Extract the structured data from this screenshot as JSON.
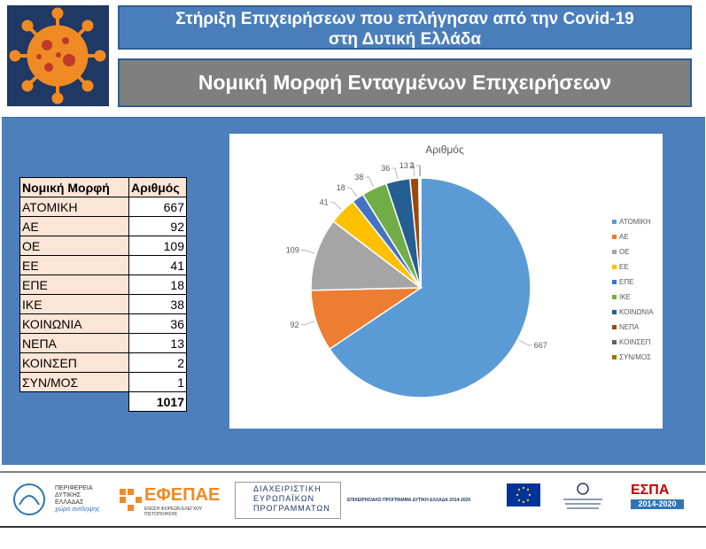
{
  "header": {
    "title_line1": "Στήριξη Επιχειρήσεων που επλήγησαν από την Covid-19",
    "title_line2": "στη Δυτική Ελλάδα",
    "subtitle": "Νομική Μορφή Ενταγμένων Επιχειρήσεων",
    "logo_icon": "virus-icon"
  },
  "table": {
    "col1": "Νομική Μορφή",
    "col2": "Αριθμός",
    "rows": [
      {
        "name": "ΑΤΟΜΙΚΗ",
        "value": "667"
      },
      {
        "name": "ΑΕ",
        "value": "92"
      },
      {
        "name": "ΟΕ",
        "value": "109"
      },
      {
        "name": "ΕΕ",
        "value": "41"
      },
      {
        "name": "ΕΠΕ",
        "value": "18"
      },
      {
        "name": "ΙΚΕ",
        "value": "38"
      },
      {
        "name": "ΚΟΙΝΩΝΙΑ",
        "value": "36"
      },
      {
        "name": "ΝΕΠΑ",
        "value": "13"
      },
      {
        "name": "ΚΟΙΝΣΕΠ",
        "value": "2"
      },
      {
        "name": "ΣΥΝ/ΜΟΣ",
        "value": "1"
      }
    ],
    "total": "1017"
  },
  "chart_data": {
    "type": "pie",
    "title": "Αριθμός",
    "legend_position": "right",
    "categories": [
      "ΑΤΟΜΙΚΗ",
      "ΑΕ",
      "ΟΕ",
      "ΕΕ",
      "ΕΠΕ",
      "ΙΚΕ",
      "ΚΟΙΝΩΝΙΑ",
      "ΝΕΠΑ",
      "ΚΟΙΝΣΕΠ",
      "ΣΥΝ/ΜΟΣ"
    ],
    "values": [
      667,
      92,
      109,
      41,
      18,
      38,
      36,
      13,
      2,
      1
    ],
    "colors": [
      "#5b9bd5",
      "#ed7d31",
      "#a5a5a5",
      "#ffc000",
      "#4472c4",
      "#70ad47",
      "#255e91",
      "#9e480e",
      "#636363",
      "#997300"
    ]
  },
  "footer": {
    "logos": [
      {
        "name": "region-logo",
        "text1": "ΠΕΡΙΦΕΡΕΙΑ",
        "text2": "ΔΥΤΙΚΗΣ",
        "text3": "ΕΛΛΑΔΑΣ",
        "text4": "χώρα αντίληψης"
      },
      {
        "name": "efepae-logo",
        "text1": "ΕΦΕΠΑΕ",
        "text2": "ΕΝΩΣΗ ΦΟΡΕΩΝ ΕΛΕΓΧΟΥ ΠΙΣΤΟΠΟΙΗΣΗΣ"
      },
      {
        "name": "mis-logo",
        "text1": "ΔΙΑΧΕΙΡΙΣΤΙΚΗ",
        "text2": "ΕΥΡΩΠΑΪΚΩΝ",
        "text3": "ΠΡΟΓΡΑΜΜΑΤΩΝ"
      },
      {
        "name": "programme-logo",
        "text1": "ΕΠΙΧΕΙΡΗΣΙΑΚΟ ΠΡΟΓΡΑΜΜΑ ΔΥΤΙΚΗ ΕΛΛΑΔΑ 2014-2020"
      },
      {
        "name": "espa-logo",
        "text1": "ΕΣΠΑ",
        "text2": "2014-2020"
      }
    ]
  }
}
